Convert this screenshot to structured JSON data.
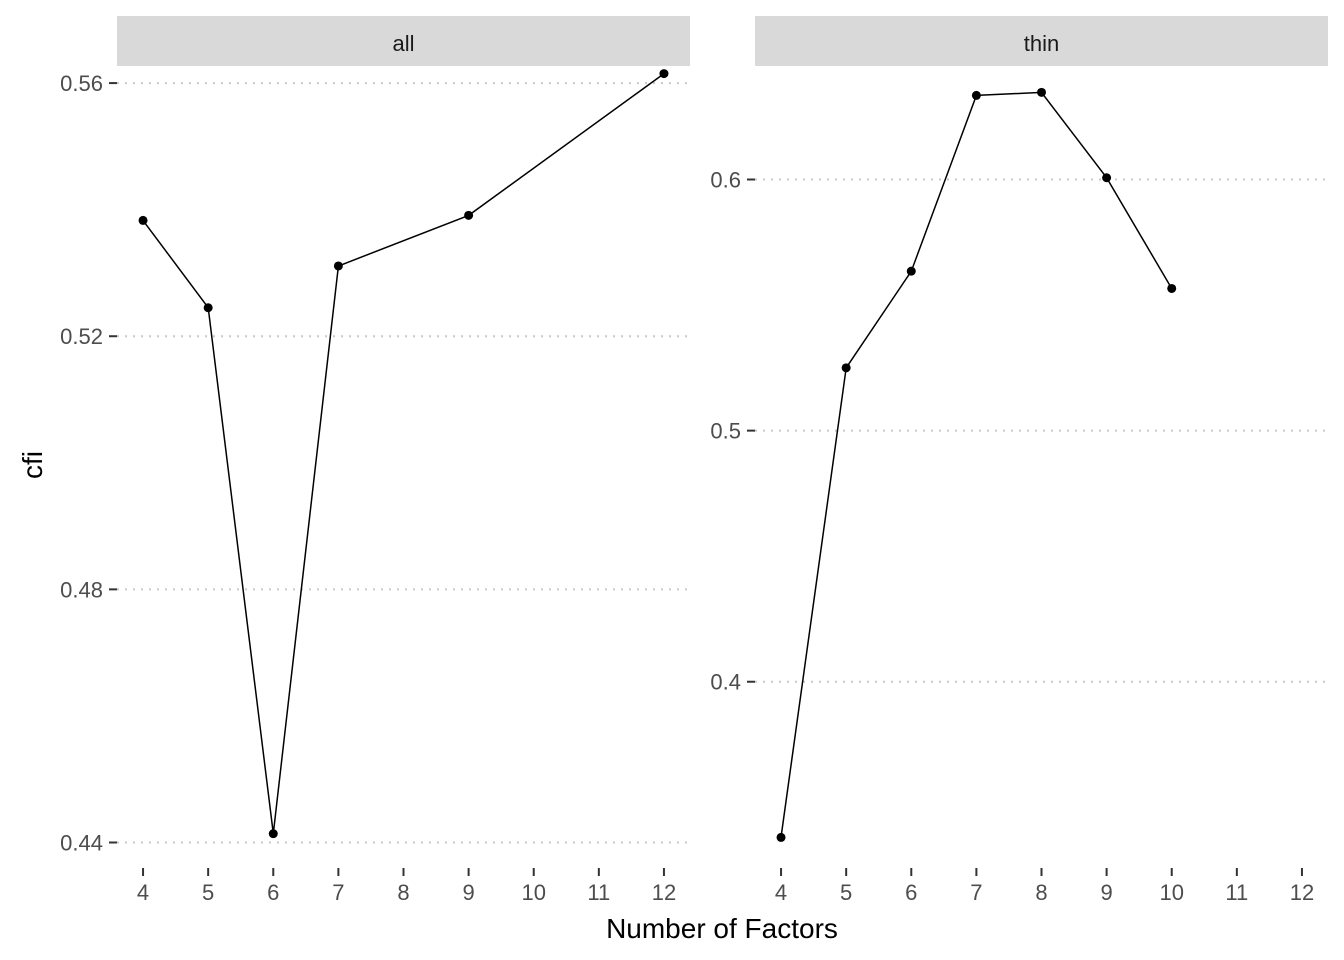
{
  "chart_data": {
    "type": "line",
    "xlabel": "Number of Factors",
    "ylabel": "cfi",
    "grid": "horizontal dotted",
    "facets": [
      {
        "label": "all",
        "x_ticks": [
          4,
          5,
          6,
          7,
          8,
          9,
          10,
          11,
          12
        ],
        "y_ticks": [
          0.44,
          0.48,
          0.52,
          0.56
        ],
        "y_tick_labels": [
          "0.44",
          "0.48",
          "0.52",
          "0.56"
        ],
        "xlim": [
          3.6,
          12.4
        ],
        "ylim": [
          0.4385,
          0.5627
        ],
        "x": [
          4,
          5,
          6,
          7,
          9,
          12
        ],
        "y": [
          0.5383,
          0.5245,
          0.4414,
          0.5311,
          0.5391,
          0.5615
        ]
      },
      {
        "label": "thin",
        "x_ticks": [
          4,
          5,
          6,
          7,
          8,
          9,
          10,
          11,
          12
        ],
        "y_ticks": [
          0.4,
          0.5,
          0.6
        ],
        "y_tick_labels": [
          "0.4",
          "0.5",
          "0.6"
        ],
        "xlim": [
          3.6,
          12.4
        ],
        "ylim": [
          0.3322,
          0.6452
        ],
        "x": [
          4,
          5,
          6,
          7,
          8,
          9,
          10
        ],
        "y": [
          0.338,
          0.525,
          0.5635,
          0.6335,
          0.6347,
          0.6007,
          0.5566
        ]
      }
    ]
  }
}
